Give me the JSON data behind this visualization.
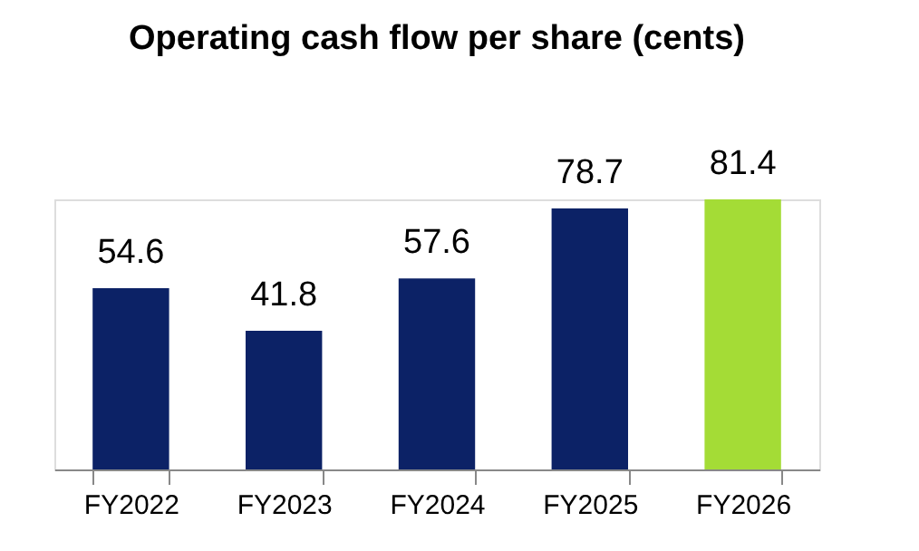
{
  "chart_data": {
    "type": "bar",
    "title": "Operating cash flow per share (cents)",
    "categories": [
      "FY2022",
      "FY2023",
      "FY2024",
      "FY2025",
      "FY2026"
    ],
    "values": [
      54.6,
      41.8,
      57.6,
      78.7,
      81.4
    ],
    "colors": [
      "#0c2266",
      "#0c2266",
      "#0c2266",
      "#0c2266",
      "#a4dc36"
    ],
    "data_labels": true,
    "grid": false
  }
}
